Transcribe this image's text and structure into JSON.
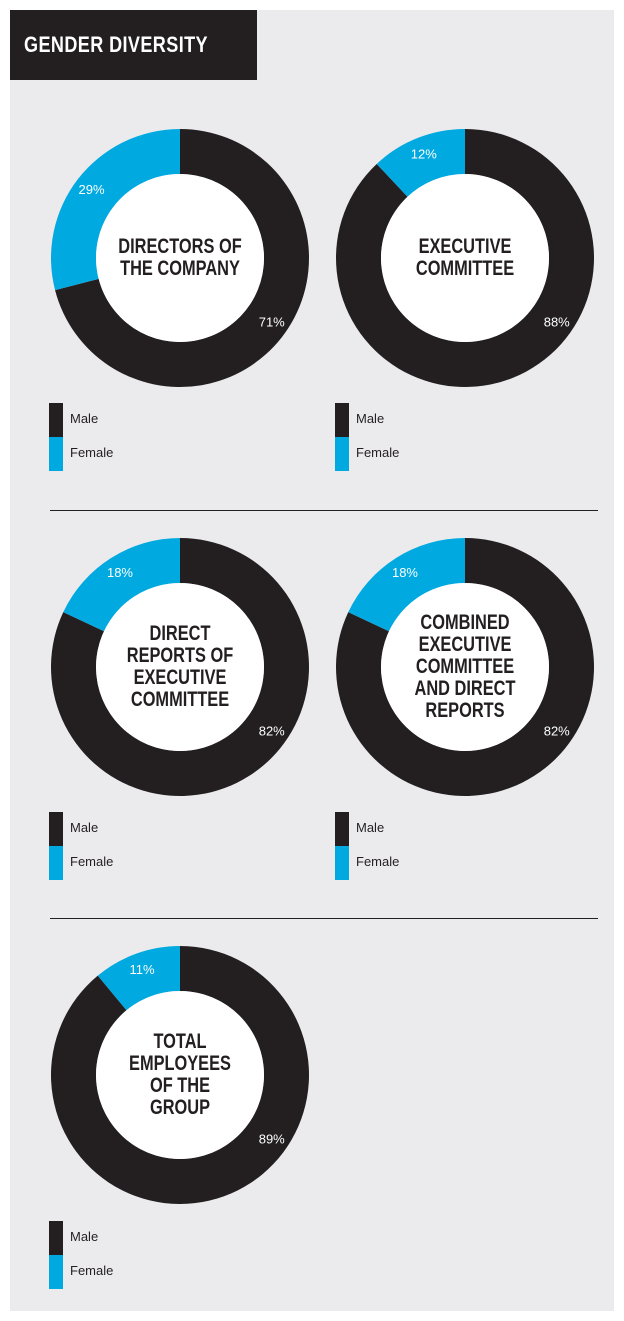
{
  "header": {
    "title": "GENDER DIVERSITY"
  },
  "colors": {
    "male": "#231f20",
    "female": "#00a9e0",
    "hole": "#ffffff",
    "male_label": "#ffffff",
    "female_label": "#ffffff"
  },
  "legend": {
    "male_label": "Male",
    "female_label": "Female"
  },
  "chart_data": [
    {
      "type": "pie",
      "title": "DIRECTORS OF\nTHE COMPANY",
      "categories": [
        "Male",
        "Female"
      ],
      "values": [
        71,
        29
      ],
      "labels": [
        "71%",
        "29%"
      ]
    },
    {
      "type": "pie",
      "title": "EXECUTIVE\nCOMMITTEE",
      "categories": [
        "Male",
        "Female"
      ],
      "values": [
        88,
        12
      ],
      "labels": [
        "88%",
        "12%"
      ]
    },
    {
      "type": "pie",
      "title": "DIRECT\nREPORTS OF\nEXECUTIVE\nCOMMITTEE",
      "categories": [
        "Male",
        "Female"
      ],
      "values": [
        82,
        18
      ],
      "labels": [
        "82%",
        "18%"
      ]
    },
    {
      "type": "pie",
      "title": "COMBINED\nEXECUTIVE\nCOMMITTEE\nAND DIRECT\nREPORTS",
      "categories": [
        "Male",
        "Female"
      ],
      "values": [
        82,
        18
      ],
      "labels": [
        "82%",
        "18%"
      ]
    },
    {
      "type": "pie",
      "title": "TOTAL\nEMPLOYEES\nOF THE\nGROUP",
      "categories": [
        "Male",
        "Female"
      ],
      "values": [
        89,
        11
      ],
      "labels": [
        "89%",
        "11%"
      ]
    }
  ]
}
